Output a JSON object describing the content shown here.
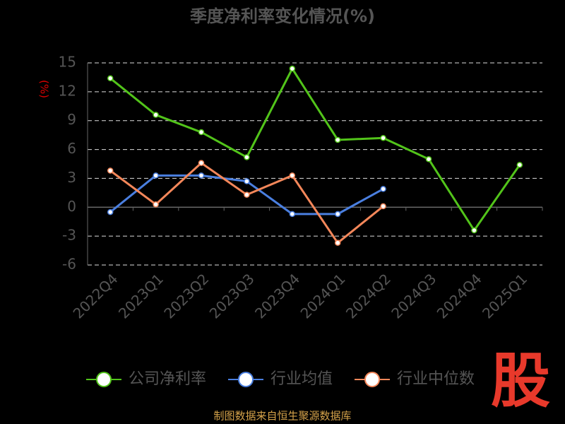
{
  "chart_data": {
    "type": "line",
    "title": "季度净利率变化情况(%)",
    "y_label": "(%)",
    "categories": [
      "2022Q4",
      "2023Q1",
      "2023Q2",
      "2023Q3",
      "2023Q4",
      "2024Q1",
      "2024Q2",
      "2024Q3",
      "2024Q4",
      "2025Q1"
    ],
    "series": [
      {
        "name": "公司净利率",
        "color": "#52c41a",
        "values": [
          13.4,
          9.6,
          7.8,
          5.2,
          14.4,
          7.0,
          7.2,
          5.0,
          -2.4,
          4.4
        ]
      },
      {
        "name": "行业均值",
        "color": "#4a7fe0",
        "values": [
          -0.5,
          3.3,
          3.3,
          2.7,
          -0.7,
          -0.7,
          1.9,
          null,
          null,
          null
        ]
      },
      {
        "name": "行业中位数",
        "color": "#f4875a",
        "values": [
          3.8,
          0.3,
          4.6,
          1.3,
          3.3,
          -3.7,
          0.1,
          null,
          null,
          null
        ]
      }
    ],
    "ylim": [
      -6,
      15
    ],
    "yticks": [
      -6,
      -3,
      0,
      3,
      6,
      9,
      12,
      15
    ],
    "grid": true,
    "legend": "bottom",
    "source": "制图数据来自恒生聚源数据库",
    "logo": "股"
  }
}
